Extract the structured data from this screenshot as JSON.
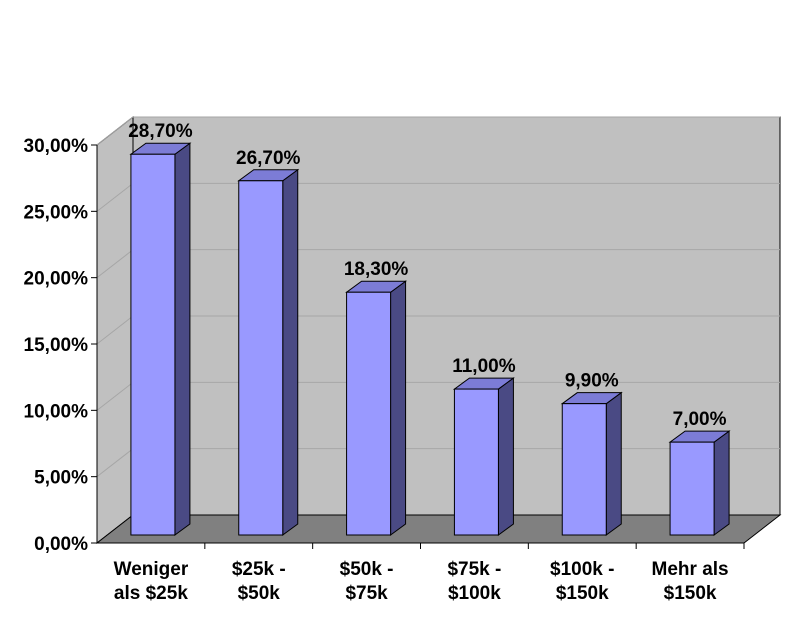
{
  "chart_data": {
    "type": "bar",
    "title": "",
    "xlabel": "",
    "ylabel": "",
    "categories": [
      [
        "Weniger",
        "als $25k"
      ],
      [
        "$25k -",
        "$50k"
      ],
      [
        "$50k -",
        "$75k"
      ],
      [
        "$75k -",
        "$100k"
      ],
      [
        "$100k -",
        "$150k"
      ],
      [
        "Mehr als",
        "$150k"
      ]
    ],
    "values": [
      28.7,
      26.7,
      18.3,
      11.0,
      9.9,
      7.0
    ],
    "value_labels": [
      "28,70%",
      "26,70%",
      "18,30%",
      "11,00%",
      "9,90%",
      "7,00%"
    ],
    "ylim": [
      0,
      30
    ],
    "yticks": [
      0,
      5,
      10,
      15,
      20,
      25,
      30
    ],
    "ytick_labels": [
      "0,00%",
      "5,00%",
      "10,00%",
      "15,00%",
      "20,00%",
      "25,00%",
      "30,00%"
    ],
    "grid": true,
    "legend": "none",
    "style": "3d-column",
    "colors": {
      "bar_front": "#9999ff",
      "bar_side": "#4a4a84",
      "bar_top": "#7c7cd6",
      "wall": "#c0c0c0",
      "floor": "#808080",
      "gridline": "#a6a6a6"
    }
  }
}
